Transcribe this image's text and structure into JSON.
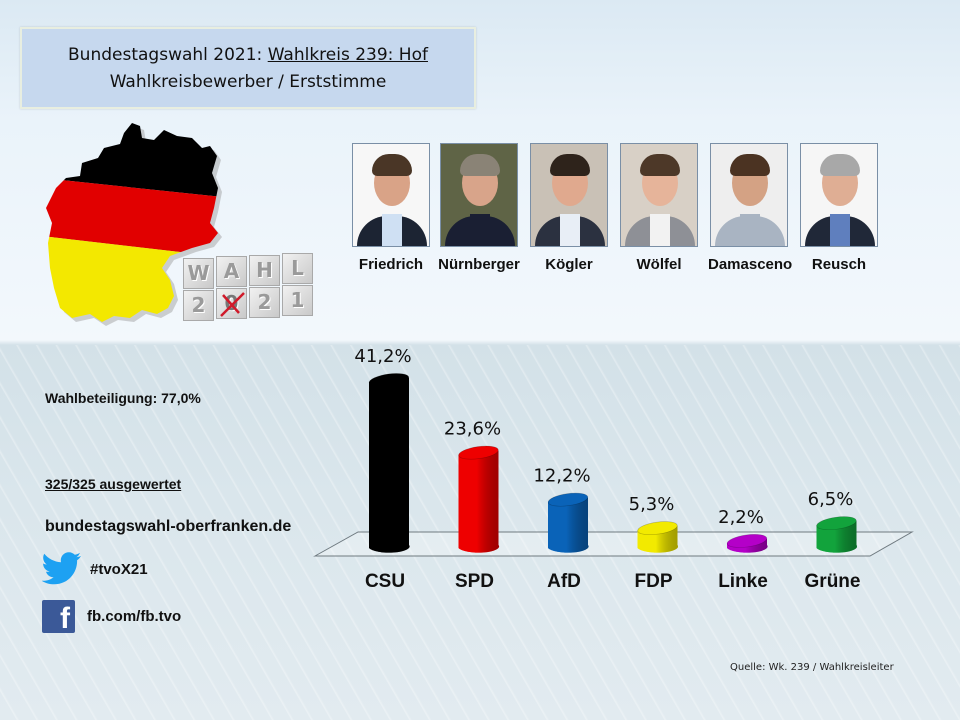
{
  "header": {
    "title_prefix": "Bundestagswahl  2021: ",
    "title_district": "Wahlkreis 239: Hof",
    "subtitle": "Wahlkreisbewerber  / Erststimme"
  },
  "logo": {
    "word": [
      "W",
      "A",
      "H",
      "L"
    ],
    "year": [
      "2",
      "0",
      "2",
      "1"
    ],
    "flag_colors": [
      "#000000",
      "#dd0000",
      "#ffee00"
    ]
  },
  "candidates": [
    {
      "name": "Friedrich",
      "party": "CSU"
    },
    {
      "name": "Nürnberger",
      "party": "SPD"
    },
    {
      "name": "Kögler",
      "party": "AfD"
    },
    {
      "name": "Wölfel",
      "party": "FDP"
    },
    {
      "name": "Damasceno",
      "party": "Linke"
    },
    {
      "name": "Reusch",
      "party": "Grüne"
    }
  ],
  "info": {
    "turnout": "Wahlbeteiligung: 77,0%",
    "counted": "325/325 ausgewertet",
    "website": "bundestagswahl-oberfranken.de",
    "twitter": "#tvoX21",
    "facebook": "fb.com/fb.tvo",
    "twitter_icon": "twitter-bird-icon",
    "facebook_icon": "facebook-icon"
  },
  "chart_data": {
    "type": "bar",
    "title": "Bundestagswahl 2021: Wahlkreis 239: Hof – Erststimme",
    "xlabel": "",
    "ylabel": "",
    "ylim": [
      0,
      45
    ],
    "grid": false,
    "categories": [
      "CSU",
      "SPD",
      "AfD",
      "FDP",
      "Linke",
      "Grüne"
    ],
    "values": [
      41.2,
      23.6,
      12.2,
      5.3,
      2.2,
      6.5
    ],
    "value_labels": [
      "41,2%",
      "23,6%",
      "12,2%",
      "5,3%",
      "2,2%",
      "6,5%"
    ],
    "colors": [
      "#000000",
      "#ee0000",
      "#0a63b8",
      "#f2ea00",
      "#b400c8",
      "#12a33c"
    ]
  },
  "footer": {
    "source": "Quelle: Wk. 239 / Wahlkreisleiter"
  }
}
